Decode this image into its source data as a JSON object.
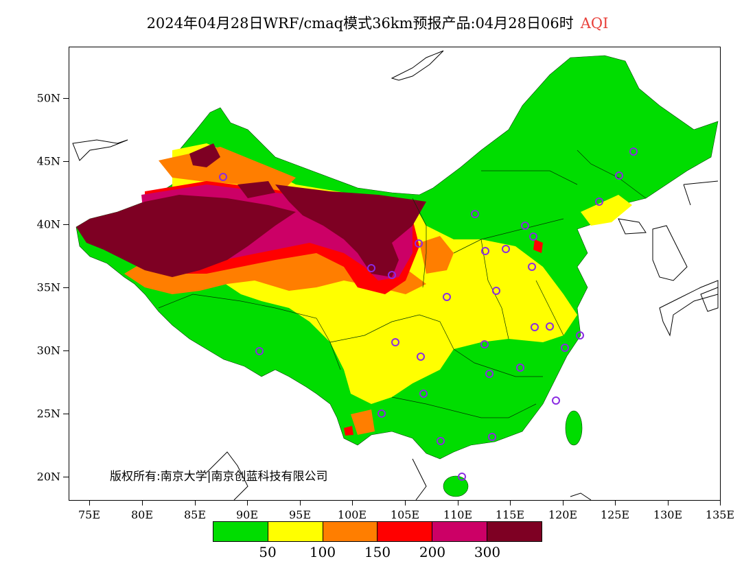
{
  "title": {
    "main": "2024年04月28日WRF/cmaq模式36km预报产品:04月28日06时",
    "variable": "AQI",
    "variable_color": "#e8403a"
  },
  "axes": {
    "lat_labels": [
      "50N",
      "45N",
      "40N",
      "35N",
      "30N",
      "25N",
      "20N"
    ],
    "lon_labels": [
      "75E",
      "80E",
      "85E",
      "90E",
      "95E",
      "100E",
      "105E",
      "110E",
      "115E",
      "120E",
      "125E",
      "130E",
      "135E"
    ]
  },
  "copyright": "版权所有:南京大学|南京创蓝科技有限公司",
  "legend": {
    "colors": [
      "#00dd00",
      "#ffff00",
      "#ff7e00",
      "#ff0000",
      "#cc0066",
      "#7e0023"
    ],
    "labels": [
      "50",
      "100",
      "150",
      "200",
      "300"
    ]
  },
  "colors": {
    "background": "#ffffff",
    "station_marker": "#8a2be2"
  }
}
